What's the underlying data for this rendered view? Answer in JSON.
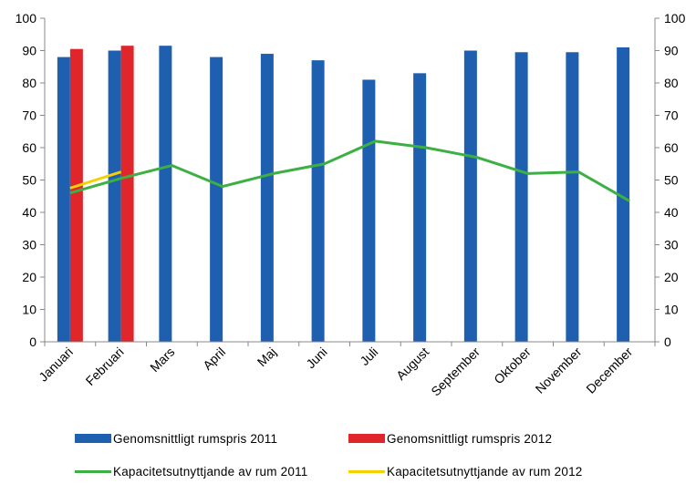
{
  "chart_data": {
    "type": "bar",
    "categories": [
      "Januari",
      "Februari",
      "Mars",
      "April",
      "Maj",
      "Juni",
      "Juli",
      "August",
      "September",
      "Oktober",
      "November",
      "December"
    ],
    "series": [
      {
        "name": "Genomsnittligt rumspris 2011",
        "type": "bar",
        "color": "#1f5fb0",
        "values": [
          88,
          90,
          91.5,
          88,
          89,
          87,
          81,
          83,
          90,
          89.5,
          89.5,
          91
        ]
      },
      {
        "name": "Genomsnittligt rumspris 2012",
        "type": "bar",
        "color": "#e0262a",
        "values": [
          90.5,
          91.5,
          null,
          null,
          null,
          null,
          null,
          null,
          null,
          null,
          null,
          null
        ]
      },
      {
        "name": "Kapacitetsutnyttjande av rum 2011",
        "type": "line",
        "color": "#3cb043",
        "values": [
          46,
          50.5,
          54.5,
          48,
          52,
          55,
          62,
          60,
          57,
          52,
          52.5,
          43.5
        ]
      },
      {
        "name": "Kapacitetsutnyttjande av rum 2012",
        "type": "line",
        "color": "#f2d200",
        "values": [
          47.5,
          52.5,
          null,
          null,
          null,
          null,
          null,
          null,
          null,
          null,
          null,
          null
        ]
      }
    ],
    "ylim": [
      0,
      100
    ],
    "y2lim": [
      0,
      100
    ],
    "yticks": [
      0,
      10,
      20,
      30,
      40,
      50,
      60,
      70,
      80,
      90,
      100
    ],
    "grid": false,
    "legend_position": "bottom",
    "title": "",
    "xlabel": "",
    "ylabel": ""
  }
}
